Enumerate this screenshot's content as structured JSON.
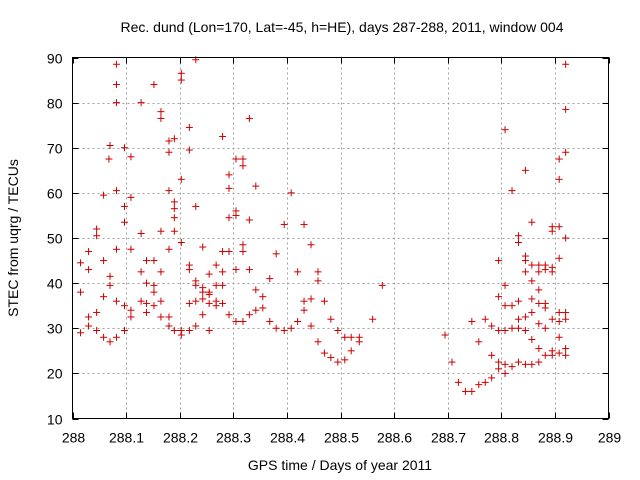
{
  "colors": {
    "points": "#cc0000",
    "background": "#ffffff",
    "grid": "#a0a0a0",
    "axis": "#000000"
  },
  "chart_data": {
    "type": "scatter",
    "title": "Rec. dund (Lon=170, Lat=-45, h=HE), days 287-288, 2011, window 004",
    "xlabel": "GPS time / Days of year 2011",
    "ylabel": "STEC from uqrg / TECUs",
    "xlim": [
      288,
      289
    ],
    "ylim": [
      10,
      90
    ],
    "xticks": [
      288,
      288.1,
      288.2,
      288.3,
      288.4,
      288.5,
      288.6,
      288.7,
      288.8,
      288.9,
      289
    ],
    "xtick_labels": [
      "288",
      "288.1",
      "288.2",
      "288.3",
      "288.4",
      "288.5",
      "288.6",
      "288.7",
      "288.8",
      "288.9",
      "289"
    ],
    "yticks": [
      10,
      20,
      30,
      40,
      50,
      60,
      70,
      80,
      90
    ],
    "ytick_labels": [
      "10",
      "20",
      "30",
      "40",
      "50",
      "60",
      "70",
      "80",
      "90"
    ],
    "grid": true,
    "marker": "+",
    "series": [
      {
        "name": "STEC",
        "points": [
          [
            288.015,
            44.5
          ],
          [
            288.015,
            38
          ],
          [
            288.015,
            29
          ],
          [
            288.03,
            47
          ],
          [
            288.03,
            43
          ],
          [
            288.03,
            32.5
          ],
          [
            288.03,
            30.5
          ],
          [
            288.045,
            52
          ],
          [
            288.045,
            50.5
          ],
          [
            288.045,
            33.5
          ],
          [
            288.045,
            29.5
          ],
          [
            288.058,
            59.5
          ],
          [
            288.058,
            45
          ],
          [
            288.058,
            37
          ],
          [
            288.058,
            28
          ],
          [
            288.068,
            67.5
          ],
          [
            288.07,
            70.5
          ],
          [
            288.07,
            41.5
          ],
          [
            288.07,
            39.5
          ],
          [
            288.07,
            27
          ],
          [
            288.082,
            88.5
          ],
          [
            288.082,
            84
          ],
          [
            288.082,
            80
          ],
          [
            288.082,
            60.5
          ],
          [
            288.082,
            47.5
          ],
          [
            288.082,
            36
          ],
          [
            288.082,
            28
          ],
          [
            288.097,
            70
          ],
          [
            288.097,
            57
          ],
          [
            288.097,
            53.5
          ],
          [
            288.097,
            35
          ],
          [
            288.097,
            29.5
          ],
          [
            288.109,
            68
          ],
          [
            288.109,
            59
          ],
          [
            288.109,
            47.5
          ],
          [
            288.109,
            34
          ],
          [
            288.109,
            32.5
          ],
          [
            288.128,
            80
          ],
          [
            288.128,
            51
          ],
          [
            288.128,
            42.5
          ],
          [
            288.128,
            36
          ],
          [
            288.138,
            45
          ],
          [
            288.138,
            40
          ],
          [
            288.138,
            35.5
          ],
          [
            288.138,
            33.5
          ],
          [
            288.152,
            84
          ],
          [
            288.152,
            45
          ],
          [
            288.152,
            39.5
          ],
          [
            288.152,
            38
          ],
          [
            288.152,
            35
          ],
          [
            288.165,
            78
          ],
          [
            288.165,
            76.5
          ],
          [
            288.165,
            51.5
          ],
          [
            288.165,
            42.5
          ],
          [
            288.165,
            36
          ],
          [
            288.165,
            32.5
          ],
          [
            288.18,
            71.5
          ],
          [
            288.18,
            69
          ],
          [
            288.18,
            60.5
          ],
          [
            288.18,
            47.5
          ],
          [
            288.18,
            32.5
          ],
          [
            288.18,
            30.5
          ],
          [
            288.19,
            72
          ],
          [
            288.19,
            58
          ],
          [
            288.19,
            56.5
          ],
          [
            288.19,
            54.5
          ],
          [
            288.19,
            51.5
          ],
          [
            288.19,
            29.5
          ],
          [
            288.203,
            86.5
          ],
          [
            288.203,
            85
          ],
          [
            288.203,
            63
          ],
          [
            288.203,
            49
          ],
          [
            288.203,
            29.5
          ],
          [
            288.203,
            28.5
          ],
          [
            288.218,
            74.5
          ],
          [
            288.218,
            69.5
          ],
          [
            288.218,
            44
          ],
          [
            288.218,
            43
          ],
          [
            288.218,
            35.5
          ],
          [
            288.218,
            29.5
          ],
          [
            288.23,
            89.5
          ],
          [
            288.23,
            57
          ],
          [
            288.23,
            40.5
          ],
          [
            288.23,
            39.5
          ],
          [
            288.23,
            36
          ],
          [
            288.23,
            30.5
          ],
          [
            288.243,
            48
          ],
          [
            288.243,
            39
          ],
          [
            288.243,
            38
          ],
          [
            288.243,
            36.5
          ],
          [
            288.243,
            33
          ],
          [
            288.255,
            42
          ],
          [
            288.255,
            38
          ],
          [
            288.255,
            37.5
          ],
          [
            288.255,
            35.5
          ],
          [
            288.255,
            29.5
          ],
          [
            288.268,
            44
          ],
          [
            288.268,
            39.5
          ],
          [
            288.268,
            36
          ],
          [
            288.268,
            35
          ],
          [
            288.28,
            72.5
          ],
          [
            288.28,
            47
          ],
          [
            288.28,
            42.5
          ],
          [
            288.28,
            39.5
          ],
          [
            288.28,
            35.5
          ],
          [
            288.292,
            64
          ],
          [
            288.292,
            61
          ],
          [
            288.292,
            54.5
          ],
          [
            288.292,
            47
          ],
          [
            288.292,
            33
          ],
          [
            288.305,
            67.5
          ],
          [
            288.305,
            56
          ],
          [
            288.305,
            55
          ],
          [
            288.305,
            43
          ],
          [
            288.305,
            31.5
          ],
          [
            288.318,
            67.5
          ],
          [
            288.318,
            66
          ],
          [
            288.318,
            48.5
          ],
          [
            288.318,
            47
          ],
          [
            288.318,
            31.5
          ],
          [
            288.33,
            76.5
          ],
          [
            288.33,
            54
          ],
          [
            288.33,
            43
          ],
          [
            288.33,
            33
          ],
          [
            288.342,
            61.5
          ],
          [
            288.342,
            38.5
          ],
          [
            288.342,
            34
          ],
          [
            288.355,
            37
          ],
          [
            288.355,
            34.5
          ],
          [
            288.368,
            41
          ],
          [
            288.368,
            31.5
          ],
          [
            288.38,
            46.5
          ],
          [
            288.38,
            30
          ],
          [
            288.395,
            53
          ],
          [
            288.395,
            29.5
          ],
          [
            288.408,
            60
          ],
          [
            288.408,
            30
          ],
          [
            288.42,
            42.5
          ],
          [
            288.42,
            31.5
          ],
          [
            288.432,
            53
          ],
          [
            288.432,
            36
          ],
          [
            288.432,
            34
          ],
          [
            288.445,
            48.5
          ],
          [
            288.445,
            36.5
          ],
          [
            288.445,
            30.5
          ],
          [
            288.458,
            42.5
          ],
          [
            288.458,
            40.5
          ],
          [
            288.458,
            27
          ],
          [
            288.47,
            36
          ],
          [
            288.47,
            24.5
          ],
          [
            288.482,
            32
          ],
          [
            288.482,
            23.5
          ],
          [
            288.495,
            29.5
          ],
          [
            288.495,
            22.5
          ],
          [
            288.508,
            28
          ],
          [
            288.508,
            23
          ],
          [
            288.52,
            28
          ],
          [
            288.52,
            25
          ],
          [
            288.535,
            28
          ],
          [
            288.535,
            27
          ],
          [
            288.56,
            32
          ],
          [
            288.578,
            39.5
          ],
          [
            288.695,
            28.5
          ],
          [
            288.708,
            22.5
          ],
          [
            288.72,
            18
          ],
          [
            288.733,
            16
          ],
          [
            288.745,
            16
          ],
          [
            288.745,
            31.5
          ],
          [
            288.758,
            17.5
          ],
          [
            288.758,
            27
          ],
          [
            288.77,
            18
          ],
          [
            288.77,
            32
          ],
          [
            288.782,
            19
          ],
          [
            288.782,
            30.5
          ],
          [
            288.782,
            24
          ],
          [
            288.795,
            45
          ],
          [
            288.795,
            37
          ],
          [
            288.795,
            29.5
          ],
          [
            288.795,
            22.5
          ],
          [
            288.795,
            21
          ],
          [
            288.807,
            74
          ],
          [
            288.807,
            39.5
          ],
          [
            288.807,
            35
          ],
          [
            288.807,
            29.5
          ],
          [
            288.807,
            22
          ],
          [
            288.807,
            20
          ],
          [
            288.82,
            60.5
          ],
          [
            288.82,
            35
          ],
          [
            288.82,
            30
          ],
          [
            288.82,
            21.5
          ],
          [
            288.832,
            50.5
          ],
          [
            288.832,
            49
          ],
          [
            288.832,
            36
          ],
          [
            288.832,
            32
          ],
          [
            288.832,
            30
          ],
          [
            288.832,
            22.5
          ],
          [
            288.845,
            65
          ],
          [
            288.845,
            46
          ],
          [
            288.845,
            45
          ],
          [
            288.845,
            42.5
          ],
          [
            288.845,
            32.5
          ],
          [
            288.845,
            29.5
          ],
          [
            288.845,
            22
          ],
          [
            288.857,
            53.5
          ],
          [
            288.857,
            44
          ],
          [
            288.857,
            40.5
          ],
          [
            288.857,
            36.5
          ],
          [
            288.857,
            33.5
          ],
          [
            288.857,
            27.5
          ],
          [
            288.857,
            22
          ],
          [
            288.87,
            44
          ],
          [
            288.87,
            42.5
          ],
          [
            288.87,
            38.5
          ],
          [
            288.87,
            35.5
          ],
          [
            288.87,
            31
          ],
          [
            288.87,
            25.5
          ],
          [
            288.87,
            22.5
          ],
          [
            288.882,
            44
          ],
          [
            288.882,
            43
          ],
          [
            288.882,
            35.5
          ],
          [
            288.882,
            34.5
          ],
          [
            288.882,
            30
          ],
          [
            288.882,
            24
          ],
          [
            288.895,
            52.5
          ],
          [
            288.895,
            51.5
          ],
          [
            288.895,
            43.5
          ],
          [
            288.895,
            42.5
          ],
          [
            288.895,
            32
          ],
          [
            288.895,
            25
          ],
          [
            288.895,
            24
          ],
          [
            288.908,
            67.5
          ],
          [
            288.908,
            63
          ],
          [
            288.908,
            52.5
          ],
          [
            288.908,
            45.5
          ],
          [
            288.908,
            33.5
          ],
          [
            288.908,
            31.5
          ],
          [
            288.908,
            28
          ],
          [
            288.908,
            24.5
          ],
          [
            288.92,
            88.5
          ],
          [
            288.92,
            78.5
          ],
          [
            288.92,
            69
          ],
          [
            288.92,
            50
          ],
          [
            288.92,
            33.5
          ],
          [
            288.92,
            32
          ],
          [
            288.92,
            25.5
          ],
          [
            288.92,
            24
          ]
        ]
      }
    ]
  }
}
